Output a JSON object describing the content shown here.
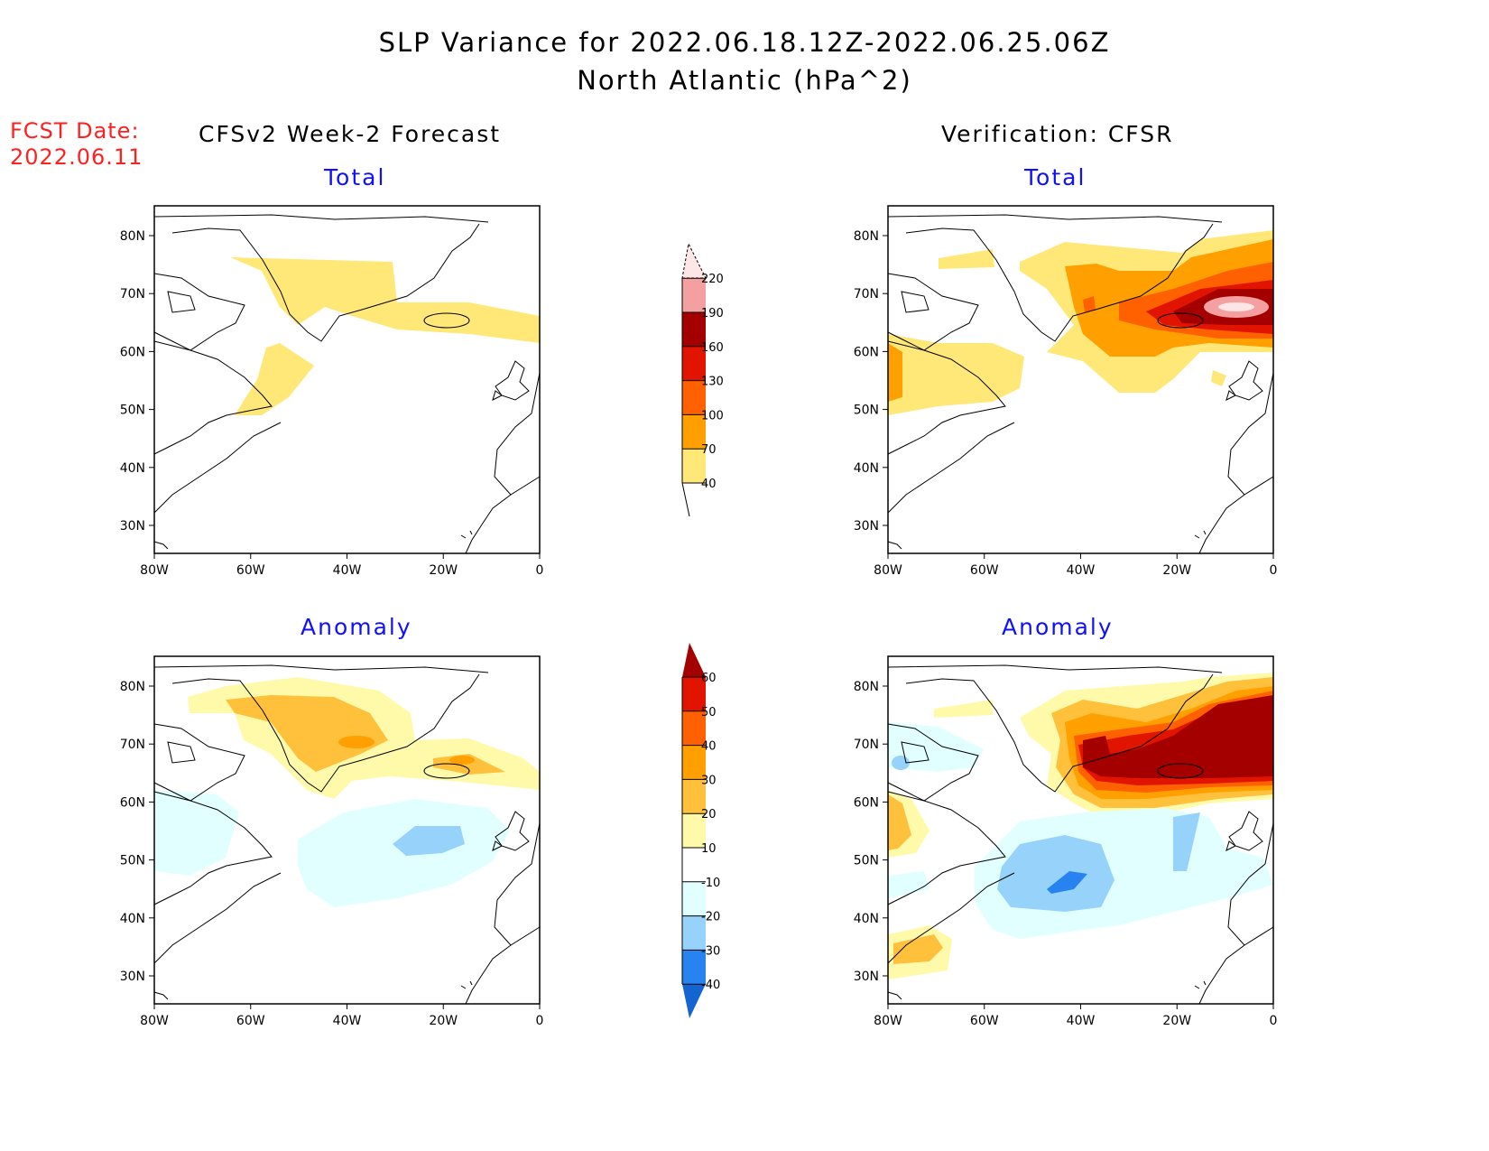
{
  "title_line1": "SLP Variance for 2022.06.18.12Z-2022.06.25.06Z",
  "title_line2": "North Atlantic (hPa^2)",
  "fcst_label": "FCST Date:",
  "fcst_date": "2022.06.11",
  "left_column_title": "CFSv2 Week-2 Forecast",
  "right_column_title": "Verification: CFSR",
  "panels": {
    "total": "Total",
    "anomaly": "Anomaly"
  },
  "lat_ticks": [
    "80N",
    "70N",
    "60N",
    "50N",
    "40N",
    "30N"
  ],
  "lon_ticks": [
    "80W",
    "60W",
    "40W",
    "20W",
    "0"
  ],
  "total_colorbar": {
    "levels": [
      "40",
      "70",
      "100",
      "130",
      "160",
      "190",
      "220"
    ],
    "colors": [
      "#ffe878",
      "#ffa000",
      "#ff6000",
      "#e11400",
      "#a50000",
      "#f5a0a0",
      "#ffe6e6"
    ]
  },
  "anomaly_colorbar": {
    "levels": [
      "60",
      "50",
      "40",
      "30",
      "20",
      "10",
      "-10",
      "-20",
      "-30",
      "-40"
    ],
    "colors": {
      "10_20": "#fffaaa",
      "20_30": "#ffc03c",
      "30_40": "#ffa000",
      "40_50": "#ff6000",
      "50_60": "#e11400",
      "gt60": "#a50000",
      "m10_m20": "#e1ffff",
      "m20_m30": "#96d2fa",
      "m30_m40": "#2882f0",
      "lt_m40": "#1464d2"
    }
  }
}
